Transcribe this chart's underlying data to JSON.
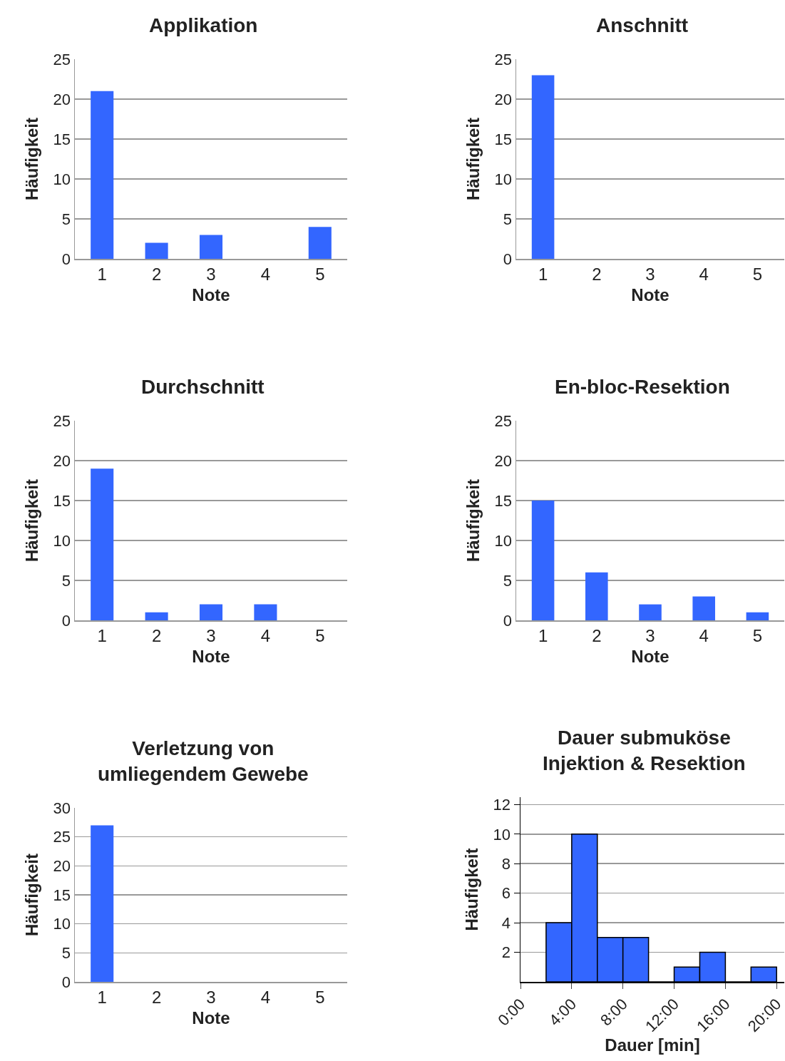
{
  "chart_data": [
    {
      "type": "bar",
      "title": "Applikation",
      "xlabel": "Note",
      "ylabel": "Häufigkeit",
      "categories": [
        "1",
        "2",
        "3",
        "4",
        "5"
      ],
      "values": [
        21,
        2,
        3,
        0,
        4
      ],
      "color": "#3366ff",
      "ylim": [
        0,
        25
      ],
      "yticks": [
        0,
        5,
        10,
        15,
        20,
        25
      ],
      "grid": "y"
    },
    {
      "type": "bar",
      "title": "Anschnitt",
      "xlabel": "Note",
      "ylabel": "Häufigkeit",
      "categories": [
        "1",
        "2",
        "3",
        "4",
        "5"
      ],
      "values": [
        23,
        0,
        0,
        0,
        0
      ],
      "color": "#3366ff",
      "ylim": [
        0,
        25
      ],
      "yticks": [
        0,
        5,
        10,
        15,
        20,
        25
      ],
      "grid": "y"
    },
    {
      "type": "bar",
      "title": "Durchschnitt",
      "xlabel": "Note",
      "ylabel": "Häufigkeit",
      "categories": [
        "1",
        "2",
        "3",
        "4",
        "5"
      ],
      "values": [
        19,
        1,
        2,
        2,
        0
      ],
      "color": "#3366ff",
      "ylim": [
        0,
        25
      ],
      "yticks": [
        0,
        5,
        10,
        15,
        20,
        25
      ],
      "grid": "y"
    },
    {
      "type": "bar",
      "title": "En-bloc-Resektion",
      "xlabel": "Note",
      "ylabel": "Häufigkeit",
      "categories": [
        "1",
        "2",
        "3",
        "4",
        "5"
      ],
      "values": [
        15,
        6,
        2,
        3,
        1
      ],
      "color": "#3366ff",
      "ylim": [
        0,
        25
      ],
      "yticks": [
        0,
        5,
        10,
        15,
        20,
        25
      ],
      "grid": "y"
    },
    {
      "type": "bar",
      "title": "Verletzung von\numliegendem Gewebe",
      "xlabel": "Note",
      "ylabel": "Häufigkeit",
      "categories": [
        "1",
        "2",
        "3",
        "4",
        "5"
      ],
      "values": [
        27,
        0,
        0,
        0,
        0
      ],
      "color": "#3366ff",
      "ylim": [
        0,
        30
      ],
      "yticks": [
        0,
        5,
        10,
        15,
        20,
        25,
        30
      ],
      "grid": "y"
    },
    {
      "type": "histogram",
      "title": "Dauer submuköse\nInjektion & Resektion",
      "xlabel": "Dauer [min]",
      "ylabel": "Häufigkeit",
      "bins": [
        2,
        4,
        6,
        8,
        10,
        12,
        14,
        16,
        18,
        20
      ],
      "values": [
        4,
        10,
        3,
        3,
        0,
        1,
        2,
        0,
        1
      ],
      "color": "#3366ff",
      "xlim": [
        0,
        20.6
      ],
      "xticks": [
        {
          "value": 0,
          "label": "0:00"
        },
        {
          "value": 4,
          "label": "4:00"
        },
        {
          "value": 8,
          "label": "8:00"
        },
        {
          "value": 12,
          "label": "12:00"
        },
        {
          "value": 16,
          "label": "16:00"
        },
        {
          "value": 20,
          "label": "20:00"
        }
      ],
      "ylim": [
        0,
        12.5
      ],
      "yticks": [
        2,
        4,
        6,
        8,
        10,
        12
      ],
      "grid": "y"
    }
  ]
}
